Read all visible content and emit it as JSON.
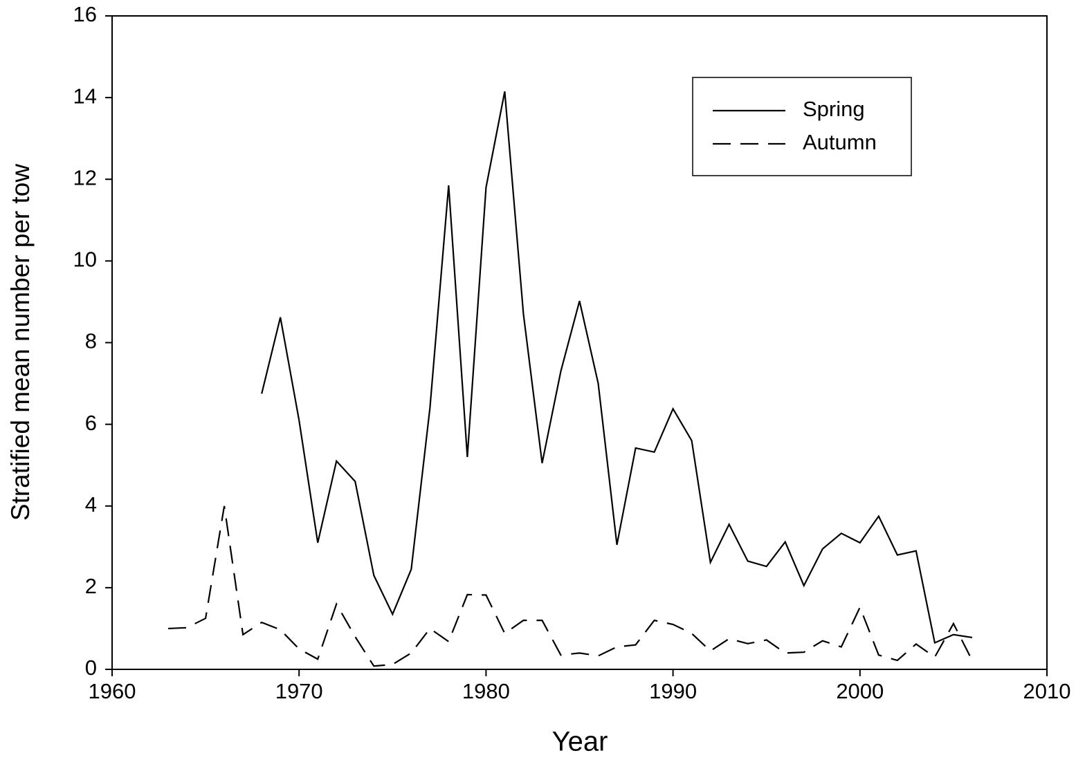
{
  "chart_data": {
    "type": "line",
    "x_label": "Year",
    "y_label": "Stratified mean number per tow",
    "xlim": [
      1960,
      2010
    ],
    "xticks": [
      1960,
      1970,
      1980,
      1990,
      2000,
      2010
    ],
    "ylim": [
      0,
      16
    ],
    "yticks": [
      0,
      2,
      4,
      6,
      8,
      10,
      12,
      14,
      16
    ],
    "legend": "upper right",
    "series": [
      {
        "name": "Spring",
        "color": "#000000",
        "dash": "solid",
        "x": [
          1968,
          1969,
          1970,
          1971,
          1972,
          1973,
          1974,
          1975,
          1976,
          1977,
          1978,
          1979,
          1980,
          1981,
          1982,
          1983,
          1984,
          1985,
          1986,
          1987,
          1988,
          1989,
          1990,
          1991,
          1992,
          1993,
          1994,
          1995,
          1996,
          1997,
          1998,
          1999,
          2000,
          2001,
          2002,
          2003,
          2004,
          2005,
          2006
        ],
        "values": [
          6.75,
          8.62,
          6.1,
          3.1,
          5.1,
          4.6,
          2.3,
          1.35,
          2.45,
          6.4,
          11.85,
          5.2,
          11.8,
          14.15,
          8.7,
          5.05,
          7.3,
          9.02,
          7.0,
          3.05,
          5.42,
          5.32,
          6.38,
          5.6,
          2.62,
          3.55,
          2.65,
          2.52,
          3.12,
          2.05,
          2.95,
          3.33,
          3.1,
          3.75,
          2.8,
          2.9,
          0.65,
          0.85,
          0.78
        ]
      },
      {
        "name": "Autumn",
        "color": "#000000",
        "dash": "dashed",
        "x": [
          1963,
          1964,
          1965,
          1966,
          1967,
          1968,
          1969,
          1970,
          1971,
          1972,
          1973,
          1974,
          1975,
          1976,
          1977,
          1978,
          1979,
          1980,
          1981,
          1982,
          1983,
          1984,
          1985,
          1986,
          1987,
          1988,
          1989,
          1990,
          1991,
          1992,
          1993,
          1994,
          1995,
          1996,
          1997,
          1998,
          1999,
          2000,
          2001,
          2002,
          2003,
          2004,
          2005,
          2006
        ],
        "values": [
          1.0,
          1.02,
          1.25,
          4.0,
          0.85,
          1.15,
          0.97,
          0.5,
          0.25,
          1.6,
          0.8,
          0.08,
          0.12,
          0.4,
          1.0,
          0.68,
          1.83,
          1.82,
          0.88,
          1.2,
          1.2,
          0.35,
          0.4,
          0.33,
          0.55,
          0.6,
          1.2,
          1.1,
          0.88,
          0.45,
          0.75,
          0.63,
          0.72,
          0.4,
          0.42,
          0.7,
          0.55,
          1.52,
          0.35,
          0.22,
          0.62,
          0.3,
          1.12,
          0.22
        ]
      }
    ]
  }
}
